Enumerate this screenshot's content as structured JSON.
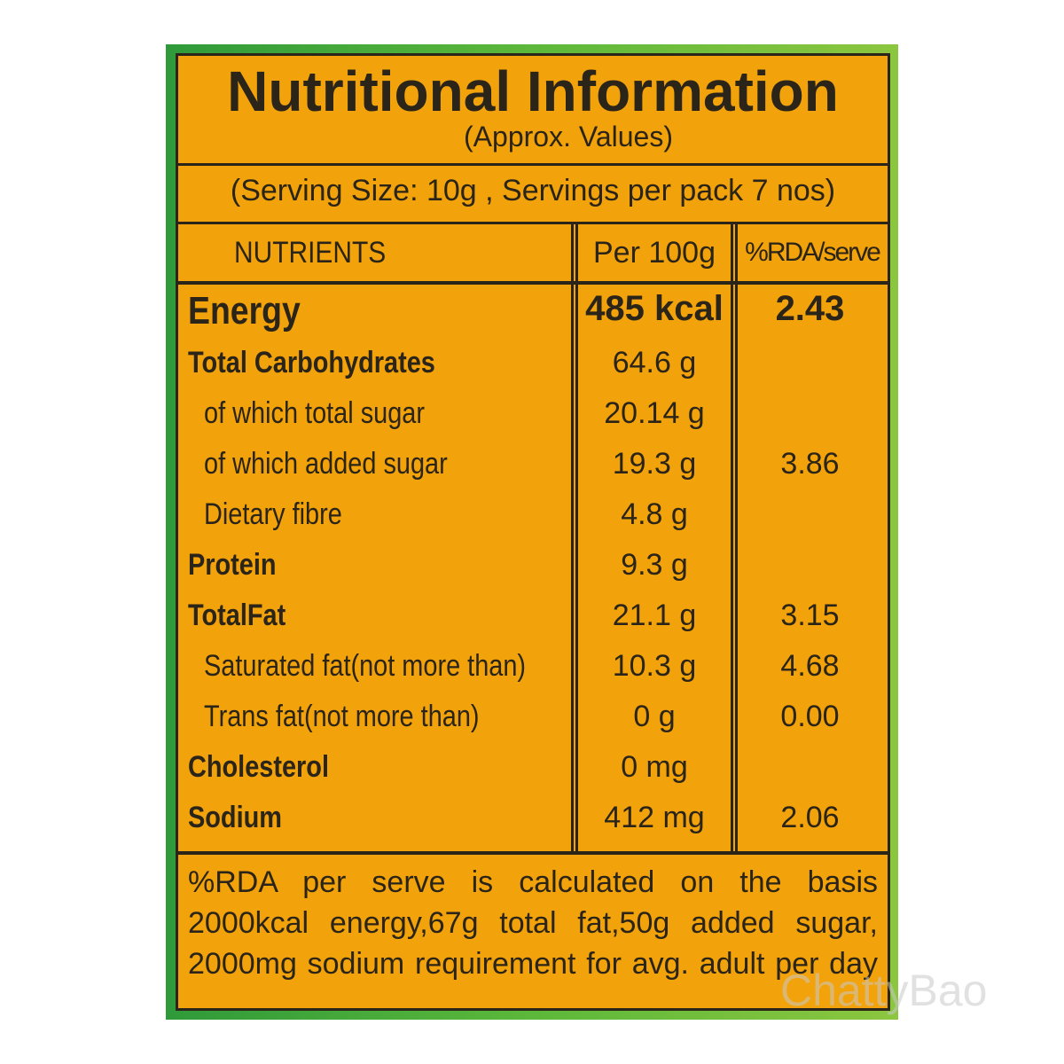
{
  "header": {
    "title": "Nutritional Information",
    "subtitle": "(Approx. Values)",
    "serving": "(Serving Size: 10g , Servings per pack 7 nos)"
  },
  "table": {
    "columns": [
      "NUTRIENTS",
      "Per 100g",
      "%RDA/serve"
    ],
    "rows": [
      {
        "name": "Energy",
        "per_100g": "485 kcal",
        "rda": "2.43"
      },
      {
        "name": "Total Carbohydrates",
        "per_100g": "64.6 g"
      },
      {
        "name": "of which total sugar",
        "per_100g": "20.14 g"
      },
      {
        "name": "of which added sugar",
        "per_100g": "19.3 g",
        "rda": "3.86"
      },
      {
        "name": "Dietary fibre",
        "per_100g": "4.8 g"
      },
      {
        "name": "Protein",
        "per_100g": "9.3 g"
      },
      {
        "name": "TotalFat",
        "per_100g": "21.1 g",
        "rda": "3.15"
      },
      {
        "name": "Saturated fat(not more than)",
        "per_100g": "10.3 g",
        "rda": "4.68"
      },
      {
        "name": "Trans fat(not more than)",
        "per_100g": "0 g",
        "rda": "0.00"
      },
      {
        "name": "Cholesterol",
        "per_100g": "0 mg"
      },
      {
        "name": "Sodium",
        "per_100g": "412 mg",
        "rda": "2.06"
      }
    ]
  },
  "footnote": [
    "%RDA per serve is calculated on the basis",
    "2000kcal energy,67g total fat,50g added sugar,",
    "2000mg sodium requirement for avg. adult per day"
  ],
  "watermark": "ChattyBao"
}
